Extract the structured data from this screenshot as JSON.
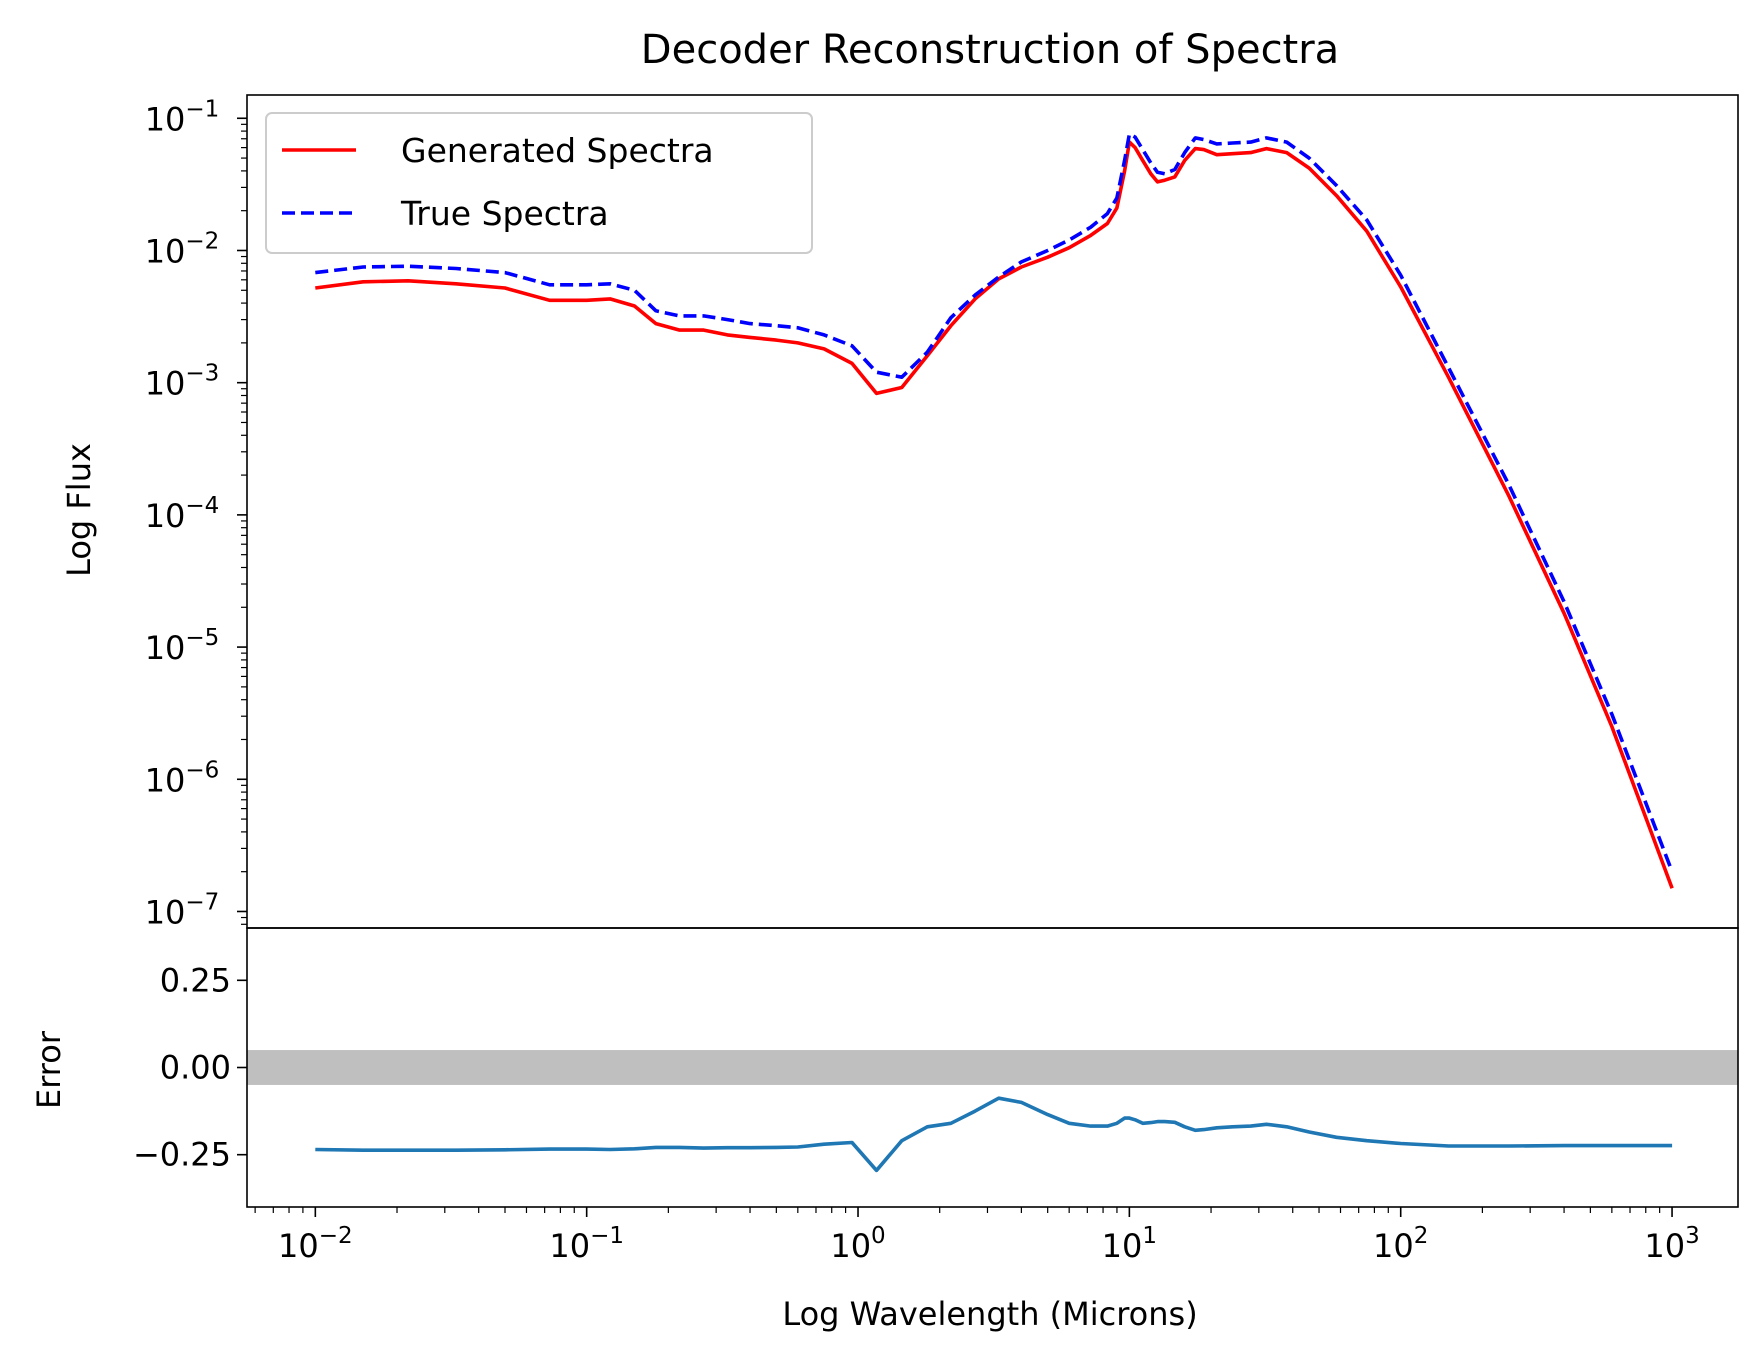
{
  "colors": {
    "generated": "#ff0000",
    "true": "#0000ff",
    "error": "#1f77b4",
    "band": "#bfbfbf",
    "axis": "#000000"
  },
  "chart_data": [
    {
      "type": "line",
      "panel": "top",
      "title": "Decoder Reconstruction of Spectra",
      "ylabel": "Log Flux",
      "xscale": "log",
      "yscale": "log",
      "xlim": [
        0.0056,
        1750
      ],
      "ylim": [
        7.5e-08,
        0.15
      ],
      "x_ticks": [
        {
          "base": "10",
          "exp": "−2"
        },
        {
          "base": "10",
          "exp": "−1"
        },
        {
          "base": "10",
          "exp": "0"
        },
        {
          "base": "10",
          "exp": "1"
        },
        {
          "base": "10",
          "exp": "2"
        },
        {
          "base": "10",
          "exp": "3"
        }
      ],
      "y_ticks": [
        {
          "base": "10",
          "exp": "−1"
        },
        {
          "base": "10",
          "exp": "−2"
        },
        {
          "base": "10",
          "exp": "−3"
        },
        {
          "base": "10",
          "exp": "−4"
        },
        {
          "base": "10",
          "exp": "−5"
        },
        {
          "base": "10",
          "exp": "−6"
        },
        {
          "base": "10",
          "exp": "−7"
        }
      ],
      "legend": {
        "position": "upper left"
      },
      "series": [
        {
          "name": "Generated Spectra",
          "style": "solid",
          "x": [
            0.01,
            0.015,
            0.022,
            0.033,
            0.05,
            0.073,
            0.1,
            0.122,
            0.15,
            0.18,
            0.22,
            0.27,
            0.33,
            0.4,
            0.5,
            0.6,
            0.75,
            0.95,
            1.17,
            1.45,
            1.8,
            2.2,
            2.7,
            3.3,
            4.0,
            5.0,
            6.0,
            7.2,
            8.3,
            9.0,
            9.6,
            10.0,
            10.5,
            11.2,
            12.0,
            12.7,
            13.5,
            14.7,
            16.0,
            17.5,
            18.8,
            21.0,
            24.0,
            28.0,
            32.0,
            38.0,
            46.0,
            58.0,
            75.0,
            100.0,
            150.0,
            250.0,
            400.0,
            600.0,
            1000.0
          ],
          "y": [
            0.0052,
            0.0058,
            0.0059,
            0.0056,
            0.0052,
            0.0042,
            0.0042,
            0.0043,
            0.0038,
            0.0028,
            0.0025,
            0.0025,
            0.0023,
            0.0022,
            0.0021,
            0.002,
            0.0018,
            0.0014,
            0.00083,
            0.00092,
            0.0016,
            0.0027,
            0.0043,
            0.0061,
            0.0075,
            0.0089,
            0.0105,
            0.013,
            0.016,
            0.021,
            0.04,
            0.066,
            0.06,
            0.048,
            0.038,
            0.033,
            0.034,
            0.036,
            0.048,
            0.059,
            0.058,
            0.053,
            0.054,
            0.055,
            0.059,
            0.055,
            0.042,
            0.026,
            0.014,
            0.0053,
            0.0011,
            0.00014,
            1.8e-05,
            2.5e-06,
            1.5e-07
          ]
        },
        {
          "name": "True Spectra",
          "style": "dashed",
          "x": [
            0.01,
            0.015,
            0.022,
            0.033,
            0.05,
            0.073,
            0.1,
            0.122,
            0.15,
            0.18,
            0.22,
            0.27,
            0.33,
            0.4,
            0.5,
            0.6,
            0.75,
            0.95,
            1.17,
            1.45,
            1.8,
            2.2,
            2.7,
            3.3,
            4.0,
            5.0,
            6.0,
            7.2,
            8.3,
            9.0,
            9.6,
            10.0,
            10.5,
            11.2,
            12.0,
            12.7,
            13.5,
            14.7,
            16.0,
            17.5,
            18.8,
            21.0,
            24.0,
            28.0,
            32.0,
            38.0,
            46.0,
            58.0,
            75.0,
            100.0,
            150.0,
            250.0,
            400.0,
            600.0,
            1000.0
          ],
          "y": [
            0.0068,
            0.0075,
            0.0076,
            0.0073,
            0.0068,
            0.0055,
            0.0055,
            0.0056,
            0.005,
            0.0035,
            0.0032,
            0.0032,
            0.003,
            0.0028,
            0.0027,
            0.0026,
            0.0023,
            0.0019,
            0.0012,
            0.0011,
            0.0017,
            0.0031,
            0.0046,
            0.0063,
            0.0082,
            0.01,
            0.012,
            0.015,
            0.019,
            0.025,
            0.048,
            0.076,
            0.072,
            0.058,
            0.046,
            0.039,
            0.038,
            0.041,
            0.055,
            0.071,
            0.069,
            0.064,
            0.065,
            0.066,
            0.071,
            0.066,
            0.05,
            0.031,
            0.017,
            0.0065,
            0.0013,
            0.00017,
            2.2e-05,
            3.1e-06,
            2e-07
          ]
        }
      ]
    },
    {
      "type": "line",
      "panel": "bottom",
      "ylabel": "Error",
      "xlabel": "Log Wavelength (Microns)",
      "xscale": "log",
      "xlim": [
        0.0056,
        1750
      ],
      "ylim": [
        -0.4,
        0.4
      ],
      "y_ticks": [
        "0.25",
        "0.00",
        "−0.25"
      ],
      "band": [
        -0.05,
        0.05
      ],
      "series": [
        {
          "name": "",
          "style": "solid",
          "x": [
            0.01,
            0.015,
            0.022,
            0.033,
            0.05,
            0.073,
            0.1,
            0.122,
            0.15,
            0.18,
            0.22,
            0.27,
            0.33,
            0.4,
            0.5,
            0.6,
            0.75,
            0.95,
            1.17,
            1.45,
            1.8,
            2.2,
            2.7,
            3.3,
            4.0,
            5.0,
            6.0,
            7.2,
            8.3,
            9.0,
            9.6,
            10.0,
            10.5,
            11.2,
            12.0,
            12.7,
            13.5,
            14.7,
            16.0,
            17.5,
            18.8,
            21.0,
            24.0,
            28.0,
            32.0,
            38.0,
            46.0,
            58.0,
            75.0,
            100.0,
            150.0,
            250.0,
            400.0,
            600.0,
            1000.0
          ],
          "y": [
            -0.235,
            -0.237,
            -0.237,
            -0.237,
            -0.236,
            -0.234,
            -0.234,
            -0.235,
            -0.233,
            -0.229,
            -0.229,
            -0.231,
            -0.23,
            -0.23,
            -0.229,
            -0.228,
            -0.22,
            -0.215,
            -0.295,
            -0.21,
            -0.17,
            -0.16,
            -0.125,
            -0.088,
            -0.1,
            -0.135,
            -0.16,
            -0.168,
            -0.168,
            -0.16,
            -0.145,
            -0.145,
            -0.15,
            -0.16,
            -0.158,
            -0.155,
            -0.155,
            -0.157,
            -0.17,
            -0.18,
            -0.178,
            -0.173,
            -0.17,
            -0.168,
            -0.163,
            -0.17,
            -0.185,
            -0.2,
            -0.21,
            -0.218,
            -0.225,
            -0.225,
            -0.224,
            -0.224,
            -0.224
          ]
        }
      ]
    }
  ]
}
